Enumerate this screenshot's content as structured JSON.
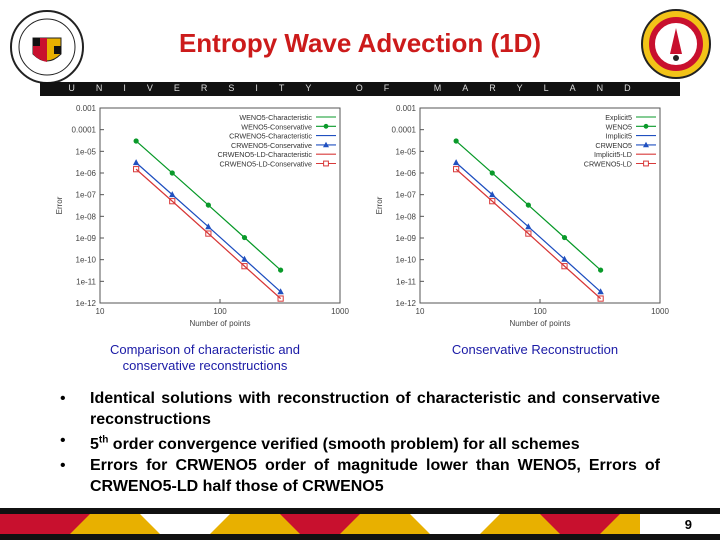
{
  "slide": {
    "title": "Entropy Wave Advection (1D)",
    "university_banner": "UNIVERSITY OF MARYLAND",
    "page_number": "9",
    "captions": {
      "left": [
        "Comparison of characteristic and",
        "conservative reconstructions"
      ],
      "right": "Conservative Reconstruction"
    },
    "bullets": [
      "Identical solutions with reconstruction of characteristic and conservative reconstructions",
      "5th order convergence verified (smooth problem) for all schemes",
      "Errors for CRWENO5 order of magnitude lower than WENO5, Errors of CRWENO5-LD half those of CRWENO5"
    ],
    "bullet_symbol": "•",
    "bullet_superscript": "th"
  },
  "chart_data": [
    {
      "type": "line",
      "xlabel": "Number of points",
      "ylabel": "Error",
      "xscale": "log",
      "yscale": "log",
      "xlim": [
        10,
        1000
      ],
      "ylim": [
        1e-12,
        0.001
      ],
      "x_ticks": [
        "10",
        "100",
        "1000"
      ],
      "y_ticks": [
        "0.001",
        "0.0001",
        "1e-05",
        "1e-06",
        "1e-07",
        "1e-08",
        "1e-09",
        "1e-10",
        "1e-11",
        "1e-12"
      ],
      "legend_position": "top-right",
      "x": [
        20,
        40,
        80,
        160,
        320
      ],
      "series": [
        {
          "name": "WENO5-Characteristic",
          "color": "#0a9a2a",
          "marker": "none",
          "values": [
            3e-05,
            1e-06,
            3.3e-08,
            1.05e-09,
            3.3e-11
          ]
        },
        {
          "name": "WENO5-Conservative",
          "color": "#0a9a2a",
          "marker": "circle",
          "values": [
            3e-05,
            1e-06,
            3.3e-08,
            1.05e-09,
            3.3e-11
          ]
        },
        {
          "name": "CRWENO5-Characteristic",
          "color": "#2050c0",
          "marker": "none",
          "values": [
            3e-06,
            1e-07,
            3.3e-09,
            1.05e-10,
            3.3e-12
          ]
        },
        {
          "name": "CRWENO5-Conservative",
          "color": "#2050c0",
          "marker": "triangle",
          "values": [
            3e-06,
            1e-07,
            3.3e-09,
            1.05e-10,
            3.3e-12
          ]
        },
        {
          "name": "CRWENO5-LD-Characteristic",
          "color": "#d83a3a",
          "marker": "none",
          "values": [
            1.5e-06,
            5e-08,
            1.6e-09,
            5e-11,
            1.6e-12
          ]
        },
        {
          "name": "CRWENO5-LD-Conservative",
          "color": "#d83a3a",
          "marker": "square",
          "values": [
            1.5e-06,
            5e-08,
            1.6e-09,
            5e-11,
            1.6e-12
          ]
        }
      ]
    },
    {
      "type": "line",
      "xlabel": "Number of points",
      "ylabel": "Error",
      "xscale": "log",
      "yscale": "log",
      "xlim": [
        10,
        1000
      ],
      "ylim": [
        1e-12,
        0.001
      ],
      "x_ticks": [
        "10",
        "100",
        "1000"
      ],
      "y_ticks": [
        "0.001",
        "0.0001",
        "1e-05",
        "1e-06",
        "1e-07",
        "1e-08",
        "1e-09",
        "1e-10",
        "1e-11",
        "1e-12"
      ],
      "legend_position": "top-right",
      "x": [
        20,
        40,
        80,
        160,
        320
      ],
      "series": [
        {
          "name": "Explicit5",
          "color": "#0a9a2a",
          "marker": "none",
          "values": [
            3e-05,
            1e-06,
            3.3e-08,
            1.05e-09,
            3.3e-11
          ]
        },
        {
          "name": "WENO5",
          "color": "#0a9a2a",
          "marker": "circle",
          "values": [
            3e-05,
            1e-06,
            3.3e-08,
            1.05e-09,
            3.3e-11
          ]
        },
        {
          "name": "Implicit5",
          "color": "#2050c0",
          "marker": "none",
          "values": [
            3e-06,
            1e-07,
            3.3e-09,
            1.05e-10,
            3.3e-12
          ]
        },
        {
          "name": "CRWENO5",
          "color": "#2050c0",
          "marker": "triangle",
          "values": [
            3e-06,
            1e-07,
            3.3e-09,
            1.05e-10,
            3.3e-12
          ]
        },
        {
          "name": "Implicit5-LD",
          "color": "#d83a3a",
          "marker": "none",
          "values": [
            1.5e-06,
            5e-08,
            1.6e-09,
            5e-11,
            1.6e-12
          ]
        },
        {
          "name": "CRWENO5-LD",
          "color": "#d83a3a",
          "marker": "square",
          "values": [
            1.5e-06,
            5e-08,
            1.6e-09,
            5e-11,
            1.6e-12
          ]
        }
      ]
    }
  ]
}
